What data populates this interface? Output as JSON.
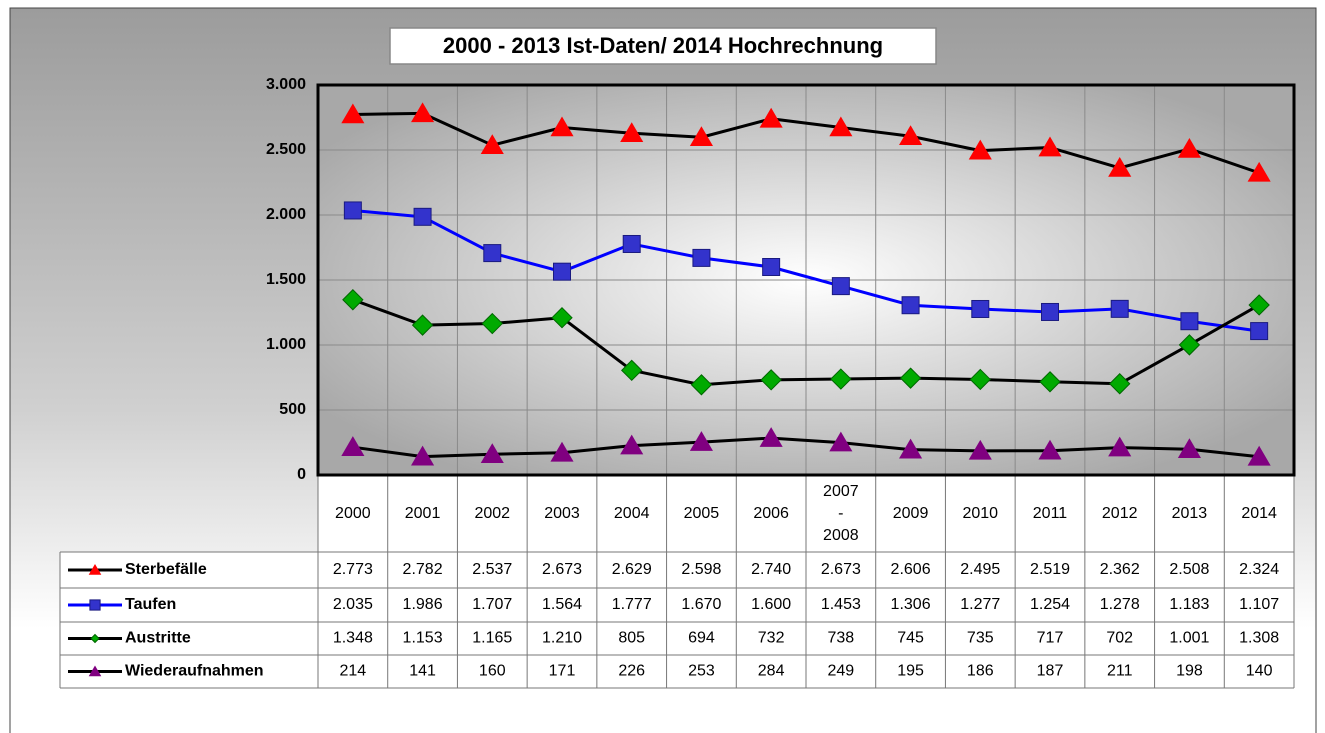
{
  "chart_data": {
    "type": "line",
    "title": "2000 - 2013 Ist-Daten/ 2014 Hochrechnung",
    "categories": [
      "2000",
      "2001",
      "2002",
      "2003",
      "2004",
      "2005",
      "2006",
      "2007\n-\n2008",
      "2009",
      "2010",
      "2011",
      "2012",
      "2013",
      "2014"
    ],
    "ylim": [
      0,
      3000
    ],
    "yticks": [
      0,
      500,
      {
        "value": 1000,
        "label": "1.000"
      },
      {
        "value": 1500,
        "label": "1.500"
      },
      {
        "value": 2000,
        "label": "2.000"
      },
      {
        "value": 2500,
        "label": "2.500"
      },
      {
        "value": 3000,
        "label": "3.000"
      }
    ],
    "grid": true,
    "series": [
      {
        "name": "Sterbefälle",
        "color": "#000000",
        "marker": "triangle",
        "marker_color": "#ff0000",
        "values": [
          2773,
          2782,
          2537,
          2673,
          2629,
          2598,
          2740,
          2673,
          2606,
          2495,
          2519,
          2362,
          2508,
          2324
        ],
        "value_labels": [
          "2.773",
          "2.782",
          "2.537",
          "2.673",
          "2.629",
          "2.598",
          "2.740",
          "2.673",
          "2.606",
          "2.495",
          "2.519",
          "2.362",
          "2.508",
          "2.324"
        ]
      },
      {
        "name": "Taufen",
        "color": "#0000ff",
        "marker": "square",
        "marker_color": "#3333cc",
        "values": [
          2035,
          1986,
          1707,
          1564,
          1777,
          1670,
          1600,
          1453,
          1306,
          1277,
          1254,
          1278,
          1183,
          1107
        ],
        "value_labels": [
          "2.035",
          "1.986",
          "1.707",
          "1.564",
          "1.777",
          "1.670",
          "1.600",
          "1.453",
          "1.306",
          "1.277",
          "1.254",
          "1.278",
          "1.183",
          "1.107"
        ]
      },
      {
        "name": "Austritte",
        "color": "#000000",
        "marker": "diamond",
        "marker_color": "#00aa00",
        "values": [
          1348,
          1153,
          1165,
          1210,
          805,
          694,
          732,
          738,
          745,
          735,
          717,
          702,
          1001,
          1308
        ],
        "value_labels": [
          "1.348",
          "1.153",
          "1.165",
          "1.210",
          "805",
          "694",
          "732",
          "738",
          "745",
          "735",
          "717",
          "702",
          "1.001",
          "1.308"
        ]
      },
      {
        "name": "Wiederaufnahmen",
        "color": "#000000",
        "marker": "triangle",
        "marker_color": "#800080",
        "values": [
          214,
          141,
          160,
          171,
          226,
          253,
          284,
          249,
          195,
          186,
          187,
          211,
          198,
          140
        ]
      }
    ]
  }
}
